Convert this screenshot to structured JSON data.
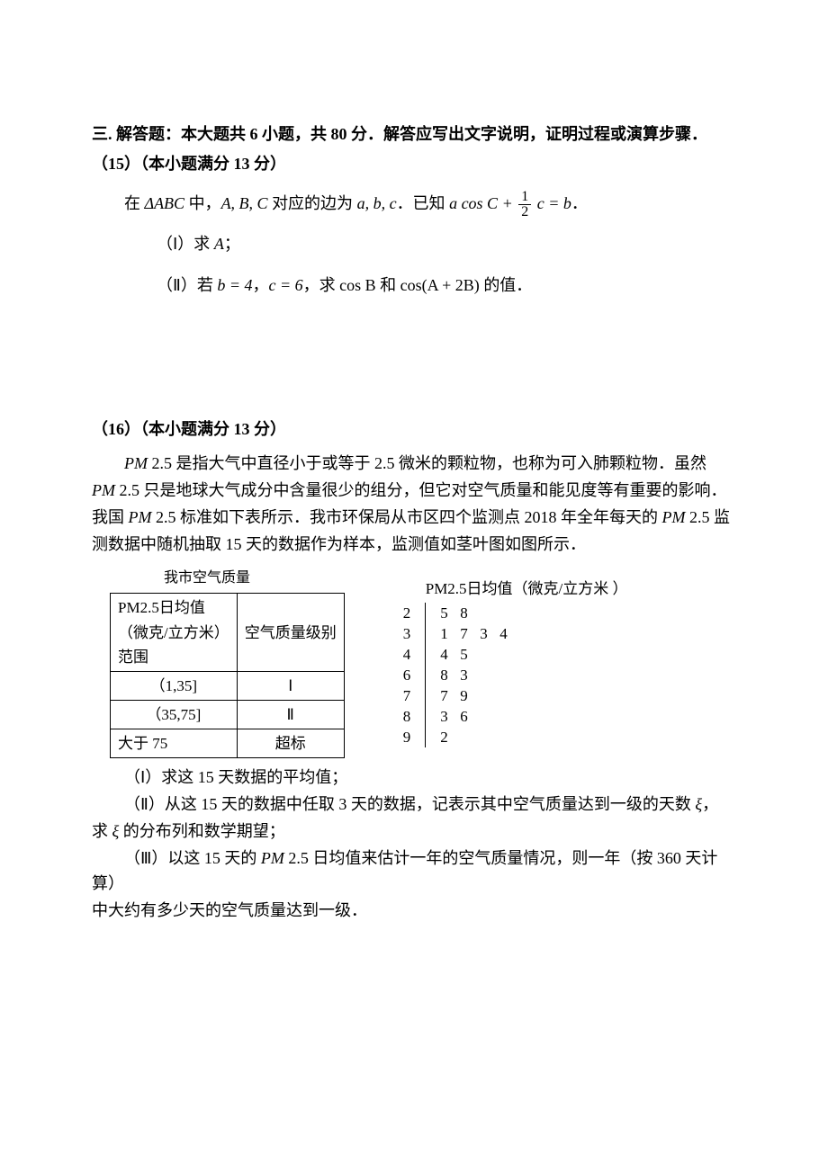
{
  "section_header": "三. 解答题：本大题共 6 小题，共 80 分．解答应写出文字说明，证明过程或演算步骤．",
  "problem15": {
    "header": "（15）（本小题满分 13 分）",
    "intro_1": "在 ",
    "intro_2": " 中，",
    "triangle": "ΔABC",
    "abc_label": "A, B, C",
    "intro_3": " 对应的边为 ",
    "sides": "a, b, c",
    "intro_4": "．已知 ",
    "eq_left": "a cos C + ",
    "frac_num": "1",
    "frac_den": "2",
    "eq_right": " c = b",
    "period": "．",
    "q1_label": "（Ⅰ）求 ",
    "q1_var": "A",
    "q1_end": "；",
    "q2_label": "（Ⅱ）若 ",
    "q2_b": "b = 4",
    "q2_comma": "，",
    "q2_c": "c = 6",
    "q2_mid": "，求 ",
    "q2_cosB": "cos B",
    "q2_and": " 和 ",
    "q2_cosA2B": "cos(A + 2B)",
    "q2_end": " 的值．"
  },
  "problem16": {
    "header": "（16）（本小题满分 13 分）",
    "para1_a": "PM",
    "para1_b": " 2.5 是指大气中直径小于或等于 2.5 微米的颗粒物，也称为可入肺颗粒物．虽然",
    "para2_a": "PM",
    "para2_b": " 2.5 只是地球大气成分中含量很少的组分，但它对空气质量和能见度等有重要的影响．",
    "para3_a": "我国 ",
    "para3_b": "PM",
    "para3_c": " 2.5 标准如下表所示．我市环保局从市区四个监测点 2018 年全年每天的 ",
    "para3_d": "PM",
    "para3_e": " 2.5 监",
    "para4": "测数据中随机抽取 15 天的数据作为样本，监测值如茎叶图如图所示．",
    "table_title": "我市空气质量",
    "table": {
      "col1_header_1": "PM2.5日均值",
      "col1_header_2": "（微克/立方米）",
      "col1_header_3": "范围",
      "col2_header": "空气质量级别",
      "rows": [
        {
          "range": "（1,35]",
          "level": "Ⅰ"
        },
        {
          "range": "（35,75]",
          "level": "Ⅱ"
        },
        {
          "range": "大于 75",
          "level": "超标"
        }
      ]
    },
    "stemleaf": {
      "title": "PM2.5日均值（微克/立方米   ）",
      "stems": [
        "2",
        "3",
        "4",
        "6",
        "7",
        "8",
        "9"
      ],
      "leaves": [
        [
          "5",
          "8"
        ],
        [
          "1",
          "7",
          "3",
          "4"
        ],
        [
          "4",
          "5"
        ],
        [
          "8",
          "3"
        ],
        [
          "7",
          "9"
        ],
        [
          "3",
          "6"
        ],
        [
          "2"
        ]
      ]
    },
    "q1": "（Ⅰ）求这 15 天数据的平均值；",
    "q2_a": "（Ⅱ）从这 15 天的数据中任取 3 天的数据，记表示其中空气质量达到一级的天数 ",
    "q2_xi": "ξ",
    "q2_b": "，",
    "q2_c": "求 ",
    "q2_xi2": "ξ",
    "q2_d": " 的分布列和数学期望；",
    "q3_a": "（Ⅲ）以这 15 天的 ",
    "q3_pm": "PM",
    "q3_b": " 2.5 日均值来估计一年的空气质量情况，则一年（按 360 天计算）",
    "q3_c": "中大约有多少天的空气质量达到一级．"
  }
}
